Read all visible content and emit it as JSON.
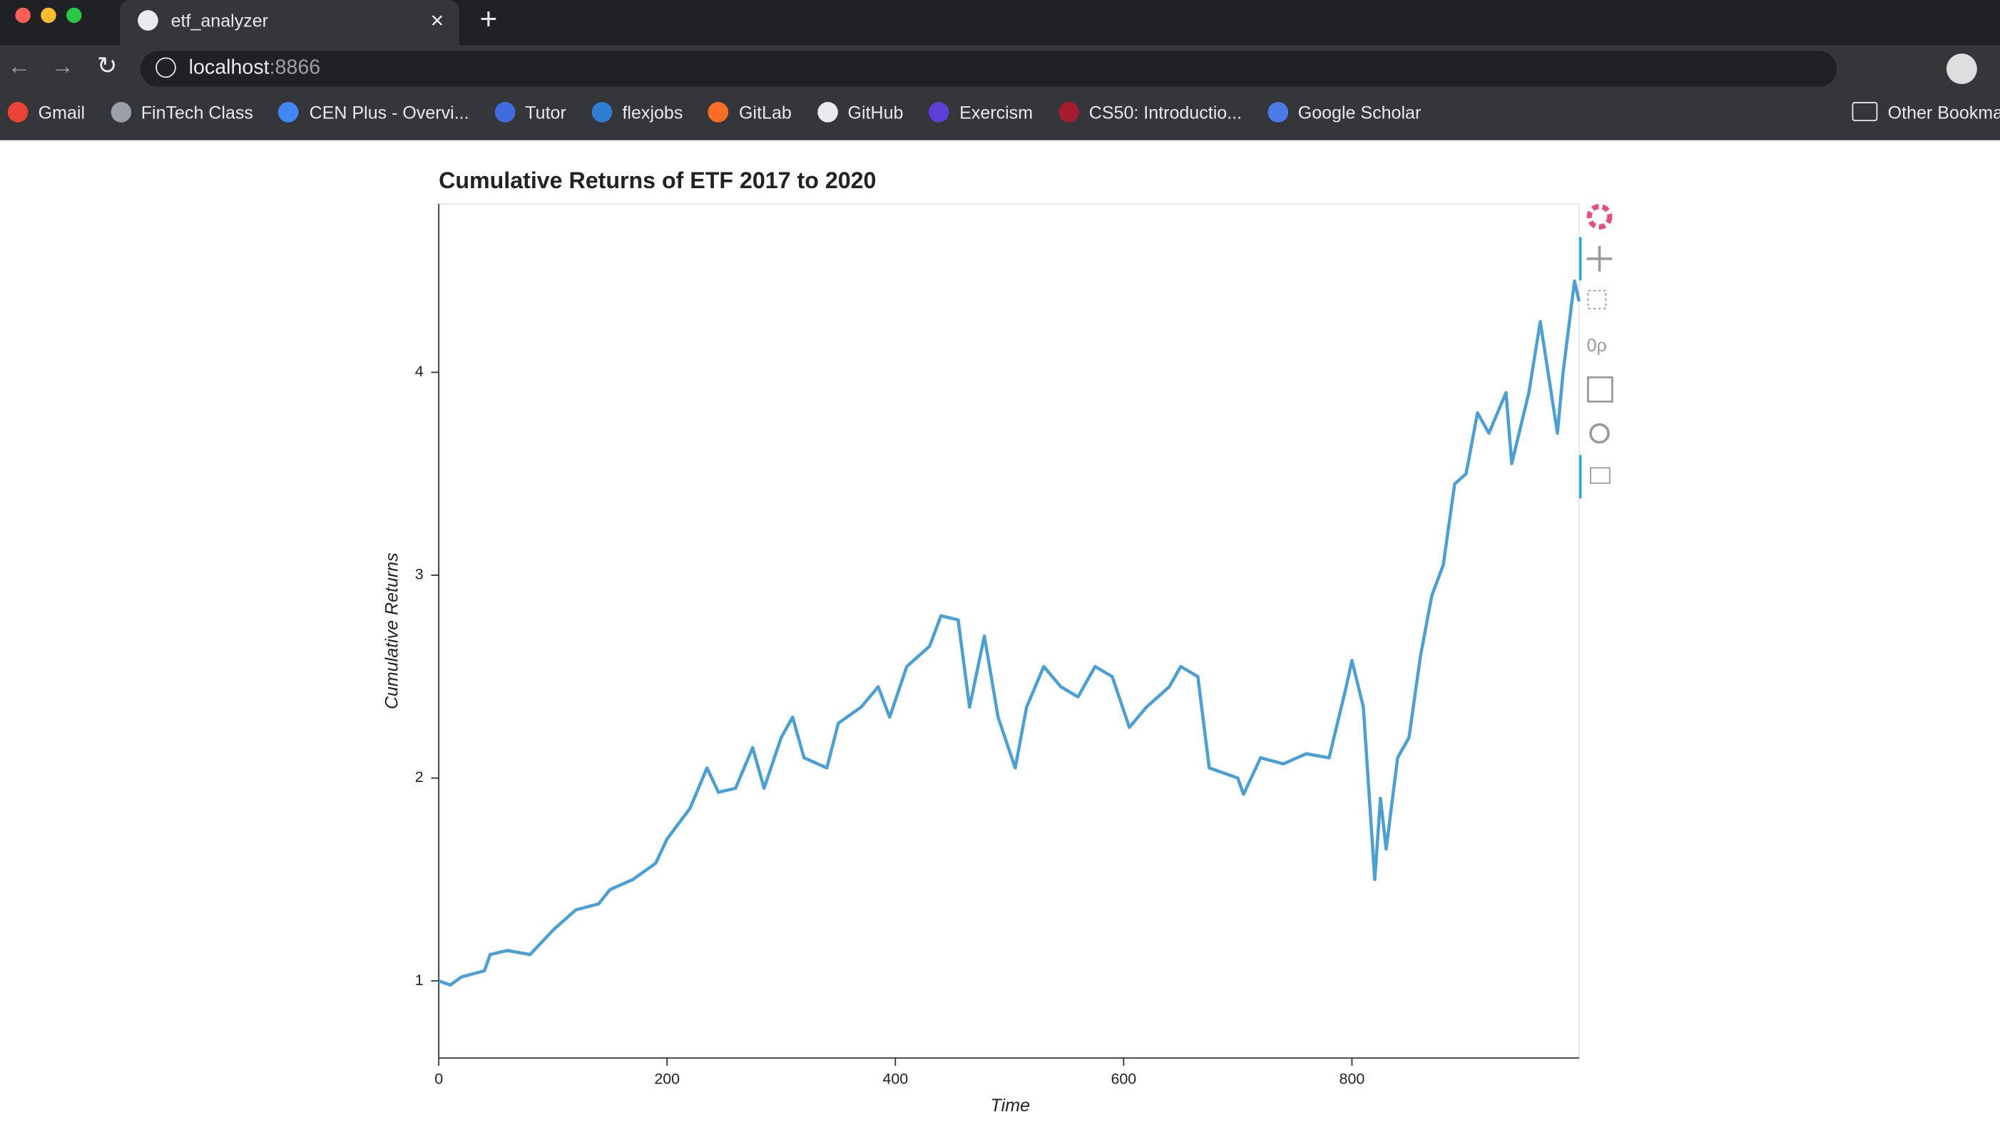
{
  "browser": {
    "tab_title": "etf_analyzer",
    "url_host": "localhost",
    "url_port": ":8866",
    "bookmarks": [
      "Gmail",
      "FinTech Class",
      "CEN Plus - Overvi...",
      "Tutor",
      "flexjobs",
      "GitLab",
      "GitHub",
      "Exercism",
      "CS50: Introductio...",
      "Google Scholar"
    ],
    "other_bookmarks": "Other Bookma"
  },
  "chart_data": {
    "type": "line",
    "title": "Cumulative Returns of ETF 2017 to 2020",
    "x_label": "Time",
    "y_label": "Cumulative Returns",
    "x": [
      0,
      10,
      20,
      40,
      45,
      60,
      80,
      100,
      120,
      140,
      150,
      170,
      190,
      200,
      220,
      235,
      245,
      260,
      275,
      285,
      300,
      310,
      320,
      340,
      350,
      370,
      385,
      395,
      410,
      430,
      440,
      455,
      465,
      478,
      490,
      505,
      515,
      530,
      545,
      560,
      575,
      590,
      605,
      620,
      640,
      650,
      665,
      675,
      700,
      705,
      720,
      740,
      760,
      780,
      795,
      800,
      810,
      820,
      825,
      830,
      840,
      850,
      860,
      870,
      880,
      890,
      900,
      910,
      920,
      935,
      940,
      955,
      965,
      980,
      985,
      995,
      999
    ],
    "values": [
      1.0,
      0.98,
      1.02,
      1.05,
      1.13,
      1.15,
      1.13,
      1.25,
      1.35,
      1.38,
      1.45,
      1.5,
      1.58,
      1.7,
      1.85,
      2.05,
      1.93,
      1.95,
      2.15,
      1.95,
      2.2,
      2.3,
      2.1,
      2.05,
      2.27,
      2.35,
      2.45,
      2.3,
      2.55,
      2.65,
      2.8,
      2.78,
      2.35,
      2.7,
      2.3,
      2.05,
      2.35,
      2.55,
      2.45,
      2.4,
      2.55,
      2.5,
      2.25,
      2.35,
      2.45,
      2.55,
      2.5,
      2.05,
      2.0,
      1.92,
      2.1,
      2.07,
      2.12,
      2.1,
      2.45,
      2.58,
      2.35,
      1.5,
      1.9,
      1.65,
      2.1,
      2.2,
      2.6,
      2.9,
      3.05,
      3.45,
      3.5,
      3.8,
      3.7,
      3.9,
      3.55,
      3.9,
      4.25,
      3.7,
      4.0,
      4.45,
      4.35
    ],
    "color": "#4a9fd5",
    "xlim": [
      0,
      999
    ],
    "xticks": [
      0,
      200,
      400,
      600,
      800
    ],
    "ylim": [
      0.62,
      4.83
    ],
    "yticks": [
      1,
      2,
      3,
      4
    ]
  }
}
